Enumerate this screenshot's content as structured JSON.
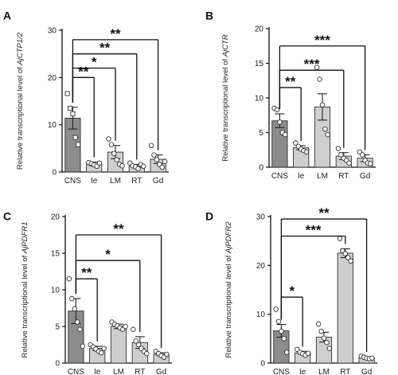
{
  "chart_data": [
    {
      "type": "bar",
      "panel_label": "A",
      "ylabel_prefix": "Relative transcriptional level of ",
      "ylabel_gene": "AjCTP1/2",
      "ylim": [
        0,
        30
      ],
      "yticks": [
        0,
        10,
        20,
        30
      ],
      "categories": [
        "CNS",
        "Ie",
        "LM",
        "RT",
        "Gd"
      ],
      "values": [
        11.4,
        1.7,
        4.2,
        1.3,
        2.7
      ],
      "sem": [
        2.3,
        0.4,
        1.4,
        0.3,
        0.9
      ],
      "colors": [
        "#8c8c8c",
        "#cfcfcf",
        "#cfcfcf",
        "#cfcfcf",
        "#cfcfcf"
      ],
      "points": [
        [
          16.6,
          13.5,
          12.3,
          7.3,
          5.8
        ],
        [
          2.0,
          1.8,
          1.5,
          1.2,
          1.9
        ],
        [
          7.0,
          5.8,
          3.9,
          2.6,
          1.6,
          1.3
        ],
        [
          1.9,
          1.3,
          1.1,
          0.7,
          1.6,
          1.2
        ],
        [
          5.6,
          3.6,
          2.6,
          1.6,
          1.0,
          2.2
        ]
      ],
      "point_shapes": [
        "square",
        "circle",
        "circle",
        "circle",
        "circle"
      ],
      "significance": [
        {
          "target": "Ie",
          "label": "**",
          "y": 20
        },
        {
          "target": "LM",
          "label": "*",
          "y": 22
        },
        {
          "target": "RT",
          "label": "**",
          "y": 25
        },
        {
          "target": "Gd",
          "label": "**",
          "y": 28
        }
      ]
    },
    {
      "type": "bar",
      "panel_label": "B",
      "ylabel_prefix": "Relative transcriptional level of ",
      "ylabel_gene": "AjCTR",
      "ylim": [
        0,
        20
      ],
      "yticks": [
        0,
        5,
        10,
        15,
        20
      ],
      "categories": [
        "CNS",
        "Ie",
        "LM",
        "RT",
        "Gd"
      ],
      "values": [
        6.7,
        2.8,
        8.7,
        1.6,
        1.3
      ],
      "sem": [
        1.0,
        0.3,
        1.9,
        0.5,
        0.5
      ],
      "colors": [
        "#8c8c8c",
        "#cfcfcf",
        "#cfcfcf",
        "#cfcfcf",
        "#cfcfcf"
      ],
      "points": [
        [
          8.5,
          8.3,
          6.5,
          5.0,
          4.7
        ],
        [
          3.5,
          3.0,
          2.6,
          2.4,
          2.2
        ],
        [
          14.4,
          12.7,
          9.0,
          5.5,
          4.7
        ],
        [
          2.7,
          1.8,
          1.3,
          1.0,
          0.6
        ],
        [
          2.2,
          1.8,
          1.0,
          0.6,
          0.5
        ]
      ],
      "point_shapes": [
        "circle",
        "circle",
        "circle",
        "circle",
        "circle"
      ],
      "significance": [
        {
          "target": "Ie",
          "label": "**",
          "y": 11.5
        },
        {
          "target": "RT",
          "label": "***",
          "y": 14
        },
        {
          "target": "Gd",
          "label": "***",
          "y": 17.5
        }
      ]
    },
    {
      "type": "bar",
      "panel_label": "C",
      "ylabel_prefix": "Relative transcriptional level of ",
      "ylabel_gene": "AjPDFR1",
      "ylim": [
        0,
        20
      ],
      "yticks": [
        0,
        5,
        10,
        15,
        20
      ],
      "categories": [
        "CNS",
        "Ie",
        "LM",
        "RT",
        "Gd"
      ],
      "values": [
        7.1,
        2.0,
        5.0,
        2.8,
        1.2
      ],
      "sem": [
        1.7,
        0.3,
        0.3,
        0.8,
        0.2
      ],
      "colors": [
        "#8c8c8c",
        "#cfcfcf",
        "#cfcfcf",
        "#cfcfcf",
        "#cfcfcf"
      ],
      "points": [
        [
          11.5,
          8.8,
          7.4,
          5.6,
          4.6,
          2.3
        ],
        [
          2.5,
          2.2,
          1.9,
          1.6,
          1.4,
          2.0
        ],
        [
          5.6,
          5.3,
          5.1,
          4.8,
          4.6,
          5.0
        ],
        [
          4.6,
          3.0,
          2.5,
          2.0,
          1.6,
          1.3
        ],
        [
          1.6,
          1.3,
          1.0,
          0.8,
          1.2
        ]
      ],
      "point_shapes": [
        "circle",
        "circle",
        "circle",
        "circle",
        "circle"
      ],
      "significance": [
        {
          "target": "Ie",
          "label": "**",
          "y": 11.5
        },
        {
          "target": "RT",
          "label": "*",
          "y": 14
        },
        {
          "target": "Gd",
          "label": "**",
          "y": 17.5
        }
      ]
    },
    {
      "type": "bar",
      "panel_label": "D",
      "ylabel_prefix": "Relative transcriptional level of ",
      "ylabel_gene": "AjPDFR2",
      "ylim": [
        0,
        30
      ],
      "yticks": [
        0,
        10,
        20,
        30
      ],
      "categories": [
        "CNS",
        "Ie",
        "LM",
        "RT",
        "Gd"
      ],
      "values": [
        6.6,
        2.1,
        5.3,
        22.5,
        1.1
      ],
      "sem": [
        1.3,
        0.3,
        1.0,
        0.9,
        0.2
      ],
      "colors": [
        "#8c8c8c",
        "#cfcfcf",
        "#cfcfcf",
        "#cfcfcf",
        "#cfcfcf"
      ],
      "points": [
        [
          11.0,
          8.5,
          6.5,
          5.0,
          2.2
        ],
        [
          2.8,
          2.2,
          1.9,
          1.6,
          2.0
        ],
        [
          8.0,
          6.5,
          5.1,
          4.2,
          3.0
        ],
        [
          25.5,
          23.0,
          22.4,
          21.6,
          20.9
        ],
        [
          1.4,
          1.2,
          1.0,
          0.9,
          1.0
        ]
      ],
      "point_shapes": [
        "circle",
        "circle",
        "circle",
        "circle",
        "circle"
      ],
      "significance": [
        {
          "target": "Ie",
          "label": "*",
          "y": 13.5
        },
        {
          "target": "RT",
          "label": "***",
          "y": 26
        },
        {
          "target": "Gd",
          "label": "**",
          "y": 29.5
        }
      ]
    }
  ]
}
